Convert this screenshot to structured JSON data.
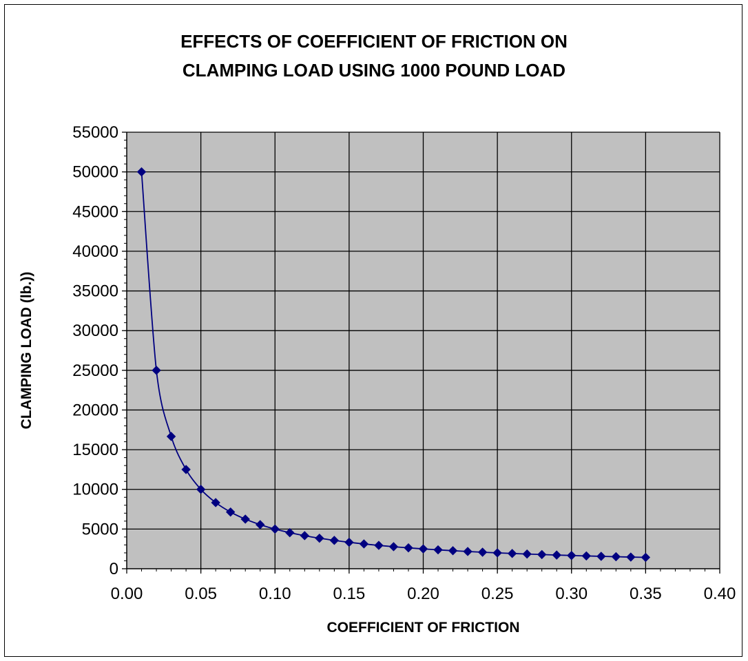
{
  "chart_data": {
    "type": "line",
    "title": [
      "EFFECTS OF COEFFICIENT OF FRICTION ON",
      "CLAMPING LOAD USING 1000 POUND LOAD"
    ],
    "xlabel": "COEFFICIENT OF FRICTION",
    "ylabel": "CLAMPING LOAD (lb.))",
    "xlim": [
      0.0,
      0.4
    ],
    "ylim": [
      0,
      55000
    ],
    "x_ticks": [
      "0.00",
      "0.05",
      "0.10",
      "0.15",
      "0.20",
      "0.25",
      "0.30",
      "0.35",
      "0.40"
    ],
    "y_ticks": [
      "0",
      "5000",
      "10000",
      "15000",
      "20000",
      "25000",
      "30000",
      "35000",
      "40000",
      "45000",
      "50000",
      "55000"
    ],
    "grid": true,
    "legend": "none",
    "colors": {
      "plot_background": "#c0c0c0",
      "series": "#000080",
      "grid": "#000000"
    },
    "series": [
      {
        "marker": "diamond",
        "x": [
          0.01,
          0.02,
          0.03,
          0.04,
          0.05,
          0.06,
          0.07,
          0.08,
          0.09,
          0.1,
          0.11,
          0.12,
          0.13,
          0.14,
          0.15,
          0.16,
          0.17,
          0.18,
          0.19,
          0.2,
          0.21,
          0.22,
          0.23,
          0.24,
          0.25,
          0.26,
          0.27,
          0.28,
          0.29,
          0.3,
          0.31,
          0.32,
          0.33,
          0.34,
          0.35
        ],
        "y": [
          50000,
          25000,
          16667,
          12500,
          10000,
          8333,
          7143,
          6250,
          5556,
          5000,
          4545,
          4167,
          3846,
          3571,
          3333,
          3125,
          2941,
          2778,
          2632,
          2500,
          2381,
          2273,
          2174,
          2083,
          2000,
          1923,
          1852,
          1786,
          1724,
          1667,
          1613,
          1563,
          1515,
          1471,
          1429
        ]
      }
    ]
  }
}
